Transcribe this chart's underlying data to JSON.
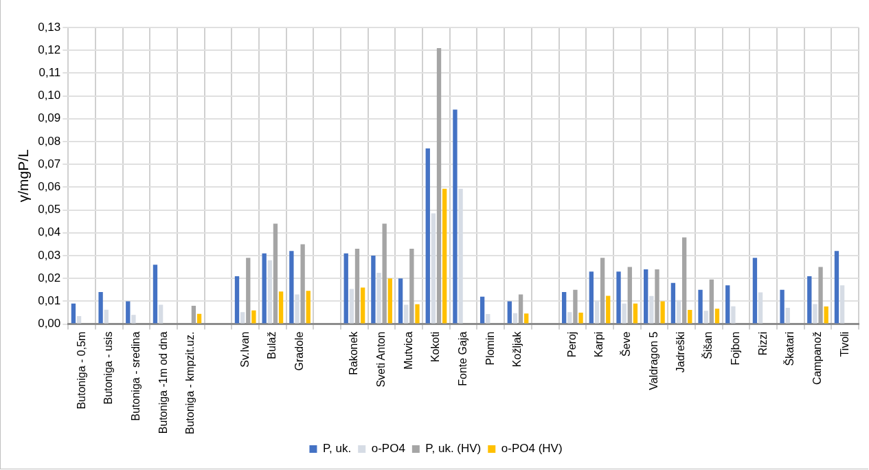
{
  "chart_data": {
    "type": "bar",
    "ylabel": "γ/mgP/L",
    "categories": [
      "Butoniga - 0,5m",
      "Butoniga - usis",
      "Butoniga - sredina",
      "Butoniga -1m od dna",
      "Butoniga - kmpzit.uz.",
      null,
      "Sv.Ivan",
      "Bulaž",
      "Gradole",
      null,
      "Rakonek",
      "Sveti Anton",
      "Mutvica",
      "Kokoti",
      "Fonte Gaja",
      "Plomin",
      "Kožljak",
      null,
      "Peroj",
      "Karpi",
      "Ševe",
      "Valdragon 5",
      "Jadreški",
      "Šišan",
      "Fojbon",
      "Rizzi",
      "Škatari",
      "Campanož",
      "Tivoli"
    ],
    "series": [
      {
        "name": "P, uk.",
        "color": "#4472c4",
        "values": [
          0.009,
          0.014,
          0.01,
          0.026,
          null,
          null,
          0.021,
          0.031,
          0.032,
          null,
          0.031,
          0.03,
          0.02,
          0.077,
          0.094,
          0.012,
          0.01,
          null,
          0.014,
          0.023,
          0.023,
          0.024,
          0.018,
          0.015,
          0.017,
          0.029,
          0.015,
          0.021,
          0.032
        ]
      },
      {
        "name": "o-PO4",
        "color": "#d6dce5",
        "values": [
          0.0035,
          0.0063,
          0.004,
          0.0085,
          null,
          null,
          0.0052,
          0.028,
          0.013,
          null,
          0.0154,
          0.0225,
          0.0085,
          0.0485,
          0.0593,
          0.0044,
          0.0048,
          null,
          0.0052,
          0.0103,
          0.009,
          0.0123,
          0.0105,
          0.0058,
          0.0078,
          0.0139,
          0.0071,
          0.0088,
          0.017
        ]
      },
      {
        "name": "P, uk. (HV)",
        "color": "#a5a5a5",
        "values": [
          null,
          null,
          null,
          null,
          0.008,
          null,
          0.029,
          0.044,
          0.035,
          null,
          0.033,
          0.044,
          0.033,
          0.121,
          null,
          null,
          0.013,
          null,
          0.015,
          0.029,
          0.025,
          0.024,
          0.038,
          0.0195,
          null,
          null,
          null,
          0.025,
          null
        ]
      },
      {
        "name": "o-PO4 (HV)",
        "color": "#ffc000",
        "values": [
          null,
          null,
          null,
          null,
          0.0045,
          null,
          0.006,
          0.0143,
          0.0146,
          null,
          0.016,
          0.02,
          0.0087,
          0.0593,
          null,
          null,
          0.0046,
          null,
          0.005,
          0.0124,
          0.009,
          0.01,
          0.0062,
          0.0067,
          null,
          null,
          null,
          0.0077,
          null
        ]
      }
    ],
    "ylim": [
      0,
      0.13
    ],
    "yticks": [
      {
        "value": 0,
        "label": "0,00"
      },
      {
        "value": 0.01,
        "label": "0,01"
      },
      {
        "value": 0.02,
        "label": "0,02"
      },
      {
        "value": 0.03,
        "label": "0,03"
      },
      {
        "value": 0.04,
        "label": "0,04"
      },
      {
        "value": 0.05,
        "label": "0,05"
      },
      {
        "value": 0.06,
        "label": "0,06"
      },
      {
        "value": 0.07,
        "label": "0,07"
      },
      {
        "value": 0.08,
        "label": "0,08"
      },
      {
        "value": 0.09,
        "label": "0,09"
      },
      {
        "value": 0.1,
        "label": "0,10"
      },
      {
        "value": 0.11,
        "label": "0,11"
      },
      {
        "value": 0.12,
        "label": "0,12"
      },
      {
        "value": 0.13,
        "label": "0,13"
      }
    ],
    "grid": true,
    "legend": "bottom"
  }
}
